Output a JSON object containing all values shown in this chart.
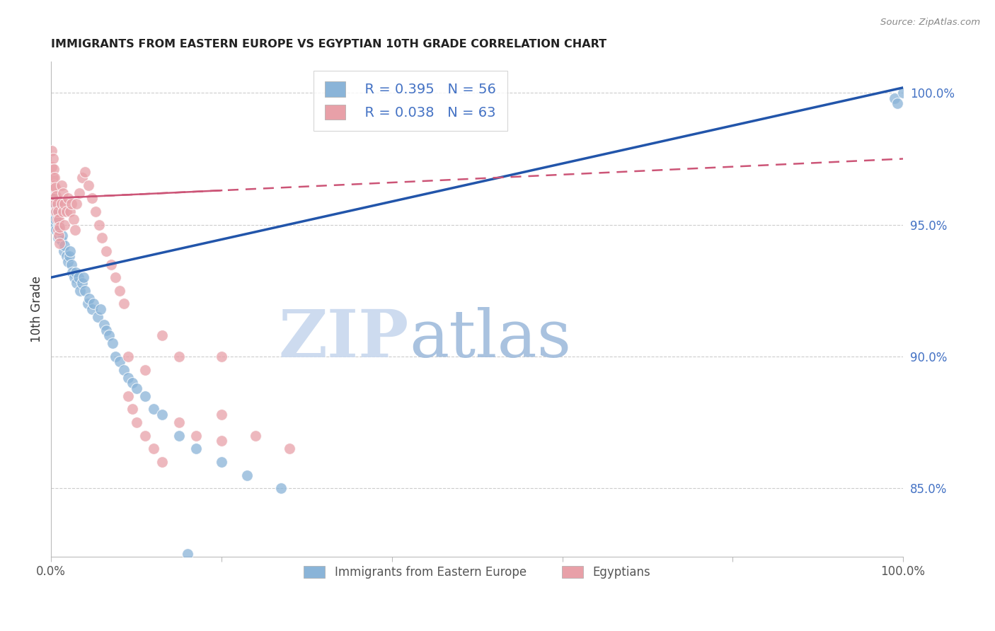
{
  "title": "IMMIGRANTS FROM EASTERN EUROPE VS EGYPTIAN 10TH GRADE CORRELATION CHART",
  "source": "Source: ZipAtlas.com",
  "ylabel": "10th Grade",
  "right_yticks": [
    "100.0%",
    "95.0%",
    "90.0%",
    "85.0%"
  ],
  "right_ytick_vals": [
    1.0,
    0.95,
    0.9,
    0.85
  ],
  "xlim": [
    0.0,
    1.0
  ],
  "ylim": [
    0.824,
    1.012
  ],
  "blue_R": "R = 0.395",
  "blue_N": "N = 56",
  "pink_R": "R = 0.038",
  "pink_N": "N = 63",
  "legend_label_blue": "Immigrants from Eastern Europe",
  "legend_label_pink": "Egyptians",
  "watermark_zip": "ZIP",
  "watermark_atlas": "atlas",
  "blue_color": "#8ab4d8",
  "pink_color": "#e8a0a8",
  "blue_line_color": "#2255aa",
  "pink_line_color": "#cc5577",
  "title_color": "#222222",
  "right_axis_color": "#4472c4",
  "grid_color": "#cccccc",
  "blue_line_x0": 0.0,
  "blue_line_y0": 0.93,
  "blue_line_x1": 1.0,
  "blue_line_y1": 1.002,
  "pink_line_x0": 0.0,
  "pink_line_y0": 0.96,
  "pink_line_x1": 1.0,
  "pink_line_y1": 0.975,
  "blue_scatter_x": [
    0.001,
    0.002,
    0.003,
    0.004,
    0.005,
    0.006,
    0.007,
    0.008,
    0.009,
    0.01,
    0.012,
    0.013,
    0.015,
    0.016,
    0.018,
    0.02,
    0.021,
    0.022,
    0.024,
    0.025,
    0.027,
    0.029,
    0.03,
    0.032,
    0.034,
    0.036,
    0.038,
    0.04,
    0.043,
    0.045,
    0.048,
    0.05,
    0.055,
    0.058,
    0.062,
    0.065,
    0.068,
    0.072,
    0.075,
    0.08,
    0.085,
    0.09,
    0.095,
    0.1,
    0.11,
    0.12,
    0.13,
    0.15,
    0.17,
    0.2,
    0.23,
    0.27,
    0.16,
    0.99,
    0.993,
    1.0
  ],
  "blue_scatter_y": [
    0.96,
    0.955,
    0.958,
    0.95,
    0.952,
    0.948,
    0.955,
    0.945,
    0.95,
    0.948,
    0.944,
    0.946,
    0.94,
    0.942,
    0.938,
    0.936,
    0.938,
    0.94,
    0.935,
    0.932,
    0.93,
    0.932,
    0.928,
    0.93,
    0.925,
    0.928,
    0.93,
    0.925,
    0.92,
    0.922,
    0.918,
    0.92,
    0.915,
    0.918,
    0.912,
    0.91,
    0.908,
    0.905,
    0.9,
    0.898,
    0.895,
    0.892,
    0.89,
    0.888,
    0.885,
    0.88,
    0.878,
    0.87,
    0.865,
    0.86,
    0.855,
    0.85,
    0.825,
    0.998,
    0.996,
    1.0
  ],
  "pink_scatter_x": [
    0.001,
    0.001,
    0.002,
    0.002,
    0.003,
    0.003,
    0.004,
    0.004,
    0.005,
    0.005,
    0.006,
    0.006,
    0.007,
    0.007,
    0.008,
    0.008,
    0.009,
    0.009,
    0.01,
    0.01,
    0.012,
    0.012,
    0.014,
    0.014,
    0.016,
    0.016,
    0.018,
    0.02,
    0.022,
    0.024,
    0.026,
    0.028,
    0.03,
    0.033,
    0.036,
    0.04,
    0.044,
    0.048,
    0.052,
    0.056,
    0.06,
    0.065,
    0.07,
    0.075,
    0.08,
    0.085,
    0.09,
    0.095,
    0.1,
    0.11,
    0.12,
    0.13,
    0.15,
    0.17,
    0.2,
    0.24,
    0.28,
    0.2,
    0.2,
    0.15,
    0.13,
    0.11,
    0.09
  ],
  "pink_scatter_y": [
    0.978,
    0.972,
    0.975,
    0.968,
    0.971,
    0.965,
    0.968,
    0.96,
    0.964,
    0.958,
    0.961,
    0.955,
    0.958,
    0.952,
    0.955,
    0.948,
    0.952,
    0.946,
    0.949,
    0.943,
    0.965,
    0.958,
    0.962,
    0.955,
    0.958,
    0.95,
    0.955,
    0.96,
    0.955,
    0.958,
    0.952,
    0.948,
    0.958,
    0.962,
    0.968,
    0.97,
    0.965,
    0.96,
    0.955,
    0.95,
    0.945,
    0.94,
    0.935,
    0.93,
    0.925,
    0.92,
    0.9,
    0.88,
    0.875,
    0.87,
    0.865,
    0.86,
    0.875,
    0.87,
    0.868,
    0.87,
    0.865,
    0.9,
    0.878,
    0.9,
    0.908,
    0.895,
    0.885
  ]
}
